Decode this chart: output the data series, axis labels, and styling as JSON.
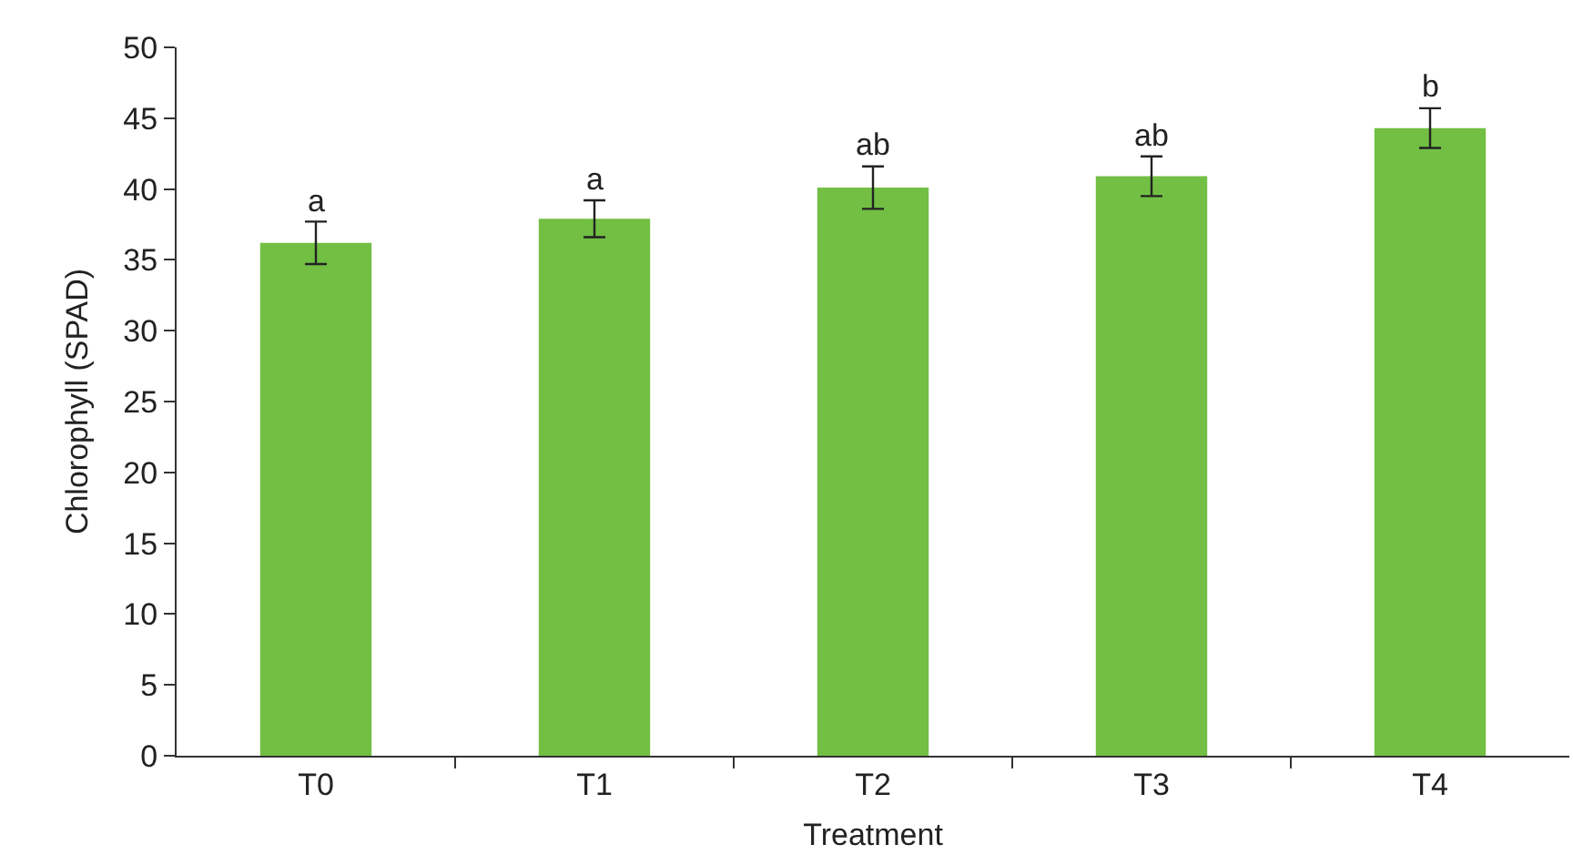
{
  "chart_data": {
    "type": "bar",
    "xlabel": "Treatment",
    "ylabel": "Chlorophyll (SPAD)",
    "categories": [
      "T0",
      "T1",
      "T2",
      "T3",
      "T4"
    ],
    "series": [
      {
        "color": "#72bf44",
        "values": [
          36.2,
          37.9,
          40.1,
          40.9,
          44.3
        ],
        "errors": [
          1.5,
          1.3,
          1.5,
          1.4,
          1.4
        ]
      }
    ],
    "ylim": [
      0,
      50
    ],
    "yticks": [
      0,
      5,
      10,
      15,
      20,
      25,
      30,
      35,
      40,
      45,
      50
    ],
    "grid": false,
    "legend": false,
    "annotations": [
      {
        "text": "a",
        "x": "T0",
        "y": 37.7
      },
      {
        "text": "a",
        "x": "T1",
        "y": 39.2
      },
      {
        "text": "ab",
        "x": "T2",
        "y": 41.6
      },
      {
        "text": "ab",
        "x": "T3",
        "y": 42.3
      },
      {
        "text": "b",
        "x": "T4",
        "y": 45.7
      }
    ]
  }
}
